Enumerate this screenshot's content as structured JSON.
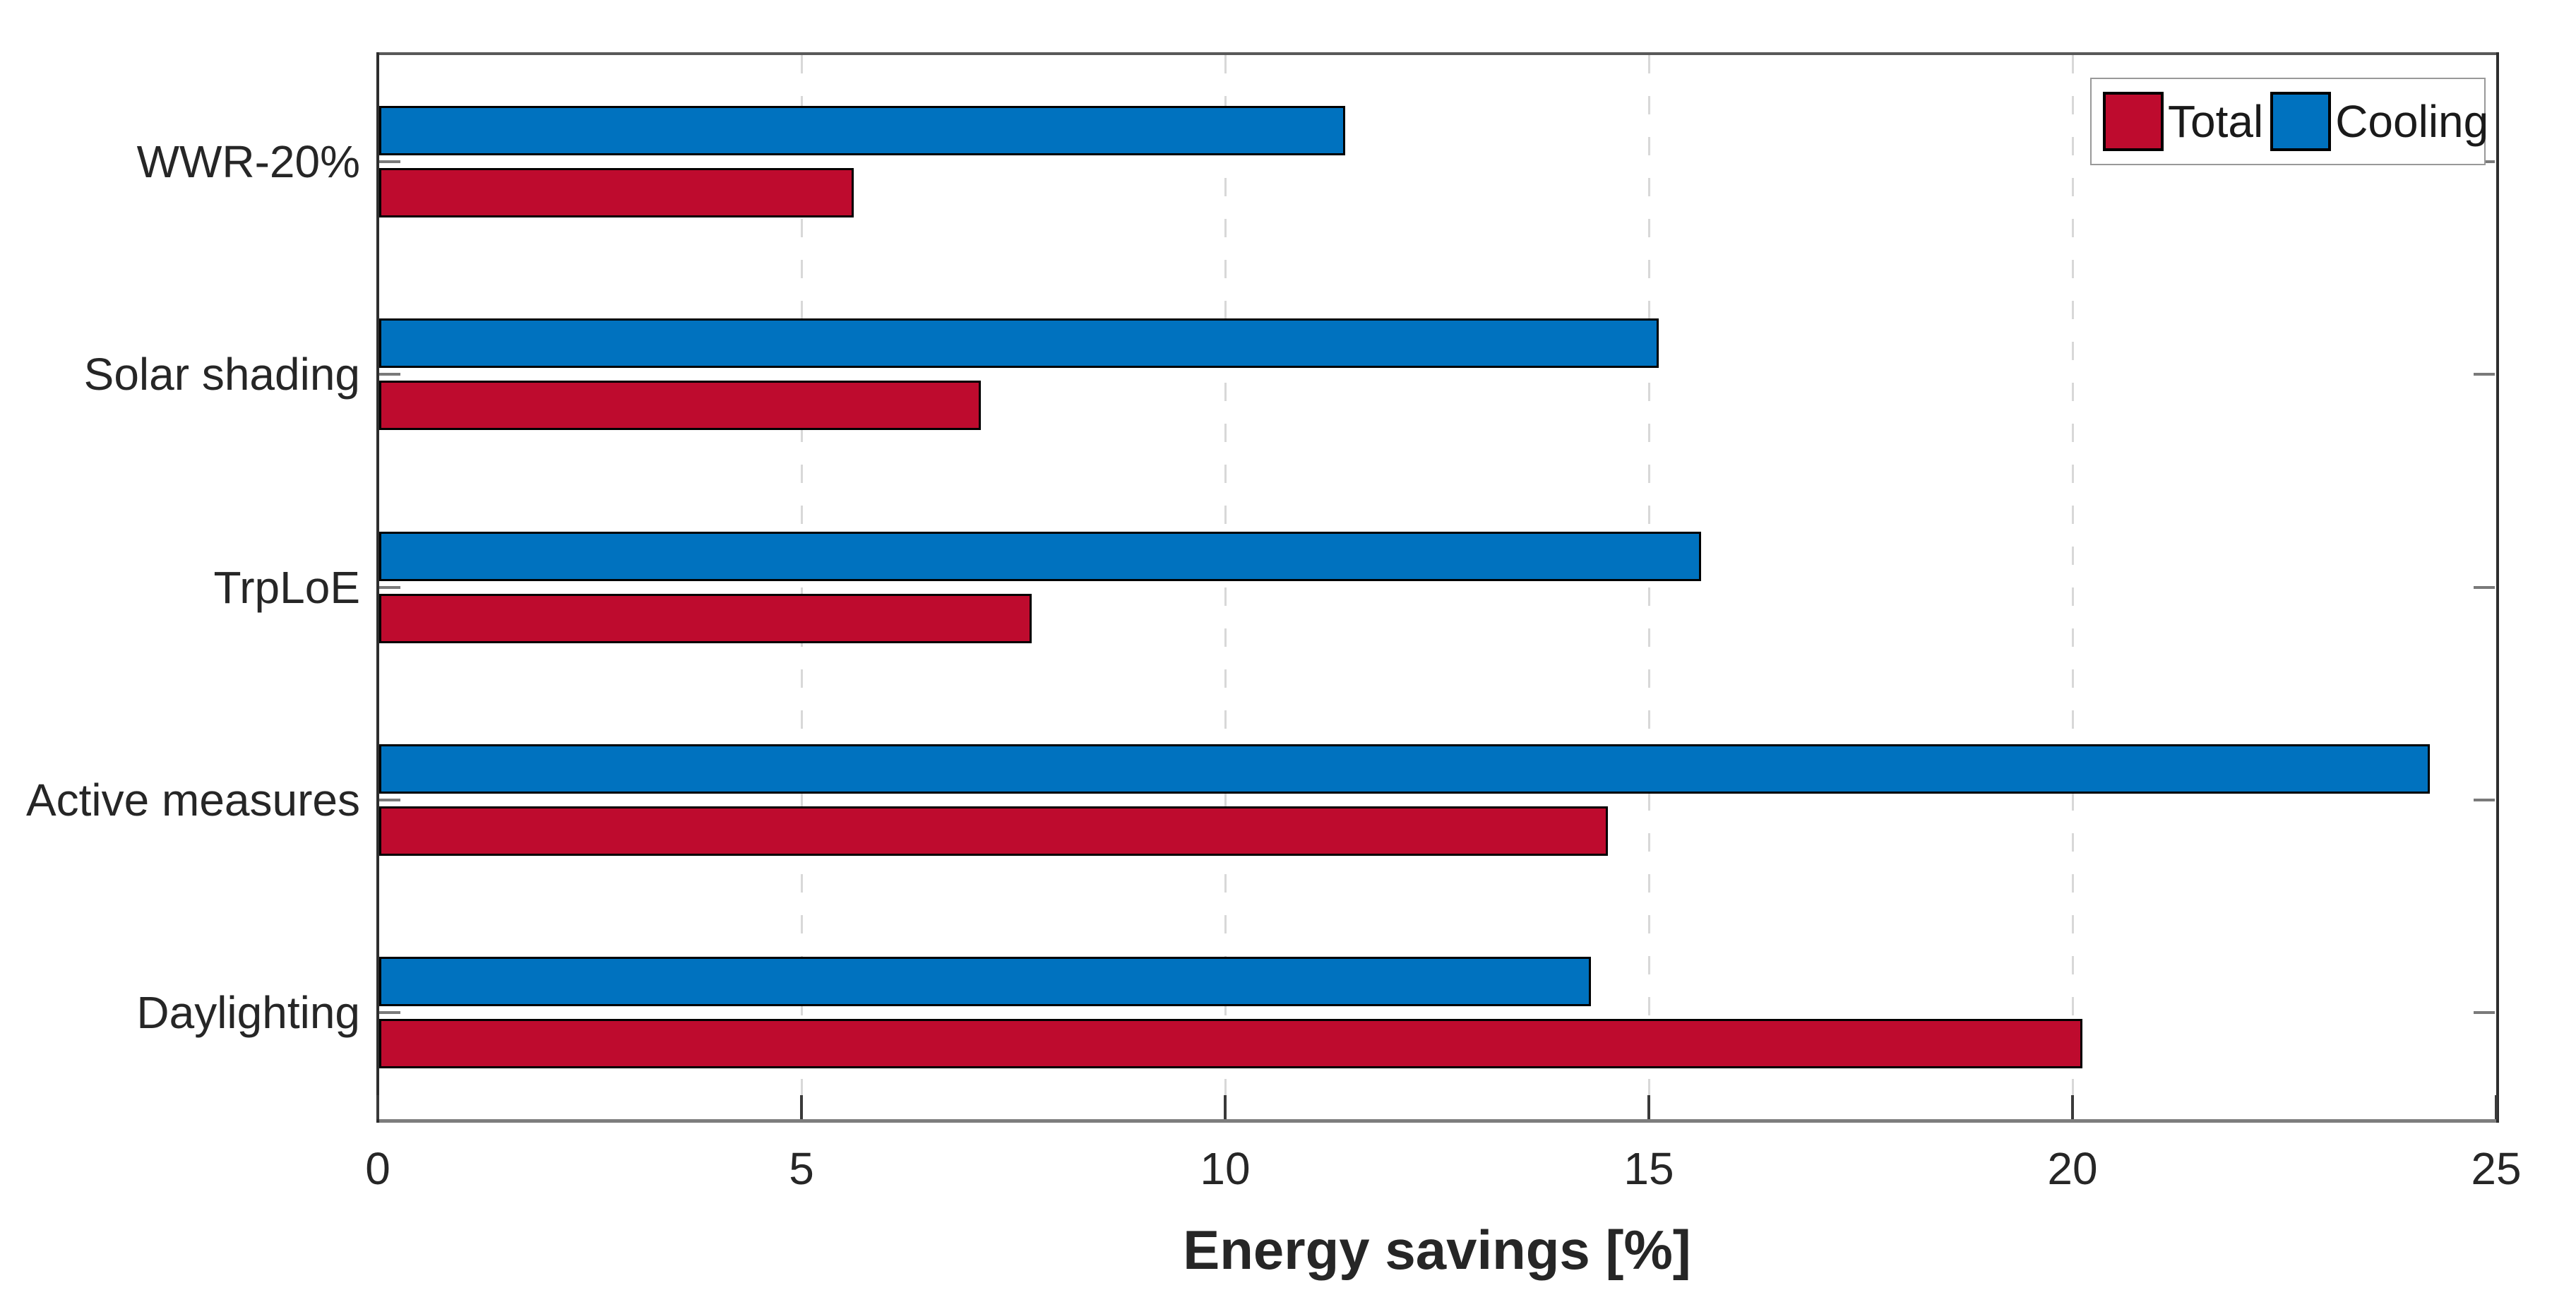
{
  "chart_data": {
    "type": "bar",
    "orientation": "horizontal",
    "title": "",
    "xlabel": "Energy savings [%]",
    "ylabel": "",
    "xlim": [
      0,
      25
    ],
    "xticks": [
      0,
      5,
      10,
      15,
      20,
      25
    ],
    "grid": "vertical dashed gridlines at 5,10,15,20",
    "legend_position": "top-right inside plot, boxed",
    "categories": [
      "WWR-20%",
      "Solar shading",
      "TrpLoE",
      "Active measures",
      "Daylighting"
    ],
    "series": [
      {
        "name": "Total",
        "color": "#BE0B2E",
        "values": [
          5.6,
          7.1,
          7.7,
          14.5,
          20.1
        ]
      },
      {
        "name": "Cooling",
        "color": "#0072BF",
        "values": [
          11.4,
          15.1,
          15.6,
          24.2,
          14.3
        ]
      }
    ],
    "bar_edge_color": "#000000",
    "group_order_top_to_bottom": [
      "Cooling",
      "Total"
    ]
  },
  "colors": {
    "background": "#ffffff",
    "axis_text": "#262626",
    "spine": "#595959",
    "gridline": "#d8d8d8",
    "legend_border": "#999999"
  }
}
